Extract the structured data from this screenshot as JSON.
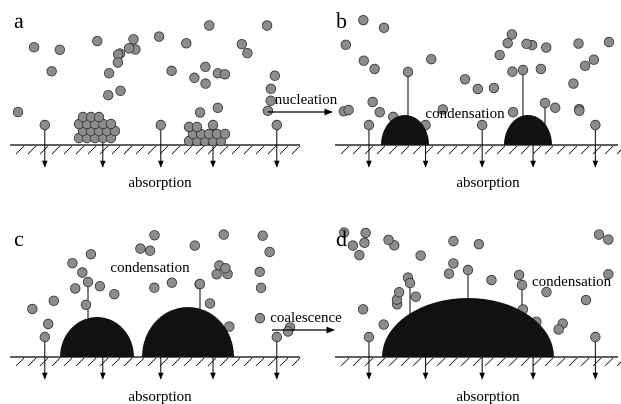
{
  "panels": [
    {
      "label": "a",
      "caption": "absorption"
    },
    {
      "label": "b",
      "process": "condensation",
      "caption": "absorption"
    },
    {
      "label": "c",
      "process": "condensation",
      "caption": "absorption"
    },
    {
      "label": "d",
      "process": "condensation",
      "caption": "absorption"
    }
  ],
  "transitions": [
    "nucleation",
    "coalescence"
  ]
}
